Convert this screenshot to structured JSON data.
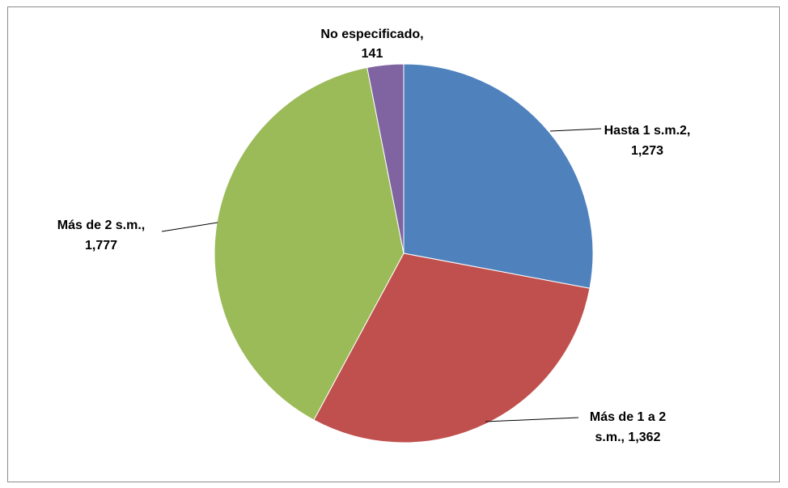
{
  "chart_data": {
    "type": "pie",
    "title": "",
    "slices": [
      {
        "label": "Hasta 1 s.m.2,",
        "value_label": "1,273",
        "value": 1273,
        "color": "#4F81BD"
      },
      {
        "label": "Más de 1 a 2",
        "value_label": "s.m.,  1,362",
        "value": 1362,
        "color": "#C0504D"
      },
      {
        "label": "Más de 2 s.m.,",
        "value_label": "1,777",
        "value": 1777,
        "color": "#9BBB59"
      },
      {
        "label": "No especificado,",
        "value_label": "141",
        "value": 141,
        "color": "#8064A2"
      }
    ],
    "start_angle_deg": 0,
    "direction": "clockwise",
    "legend": "none"
  }
}
